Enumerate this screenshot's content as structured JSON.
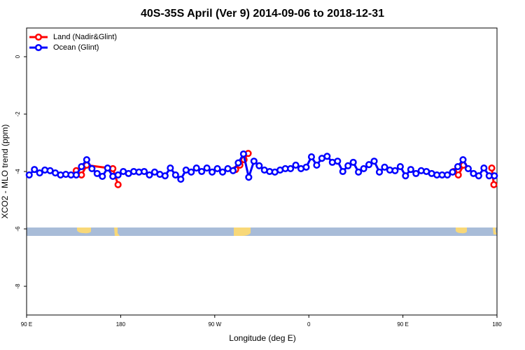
{
  "chart_data": {
    "type": "line",
    "title": "40S-35S April (Ver 9)   2014-09-06 to 2018-12-31",
    "x_label": "Longitude (deg E)",
    "y_label": "XCO2 - MLO trend (ppm)",
    "xlim": [
      90,
      540
    ],
    "ylim": [
      -9,
      1
    ],
    "xticks": [
      {
        "value": 90,
        "label": "90 E"
      },
      {
        "value": 180,
        "label": "180"
      },
      {
        "value": 270,
        "label": "90 W"
      },
      {
        "value": 360,
        "label": "0"
      },
      {
        "value": 450,
        "label": "90 E"
      },
      {
        "value": 540,
        "label": "180"
      }
    ],
    "yticks": [
      0,
      -2,
      -4,
      -6,
      -8
    ],
    "legend": "top-left",
    "series": [
      {
        "name": "Land (Nadir&Glint)",
        "color": "#ff0000",
        "x": [
          137.5,
          142.5,
          147.5,
          172.5,
          177.5,
          230,
          290,
          294,
          298,
          302,
          400,
          498.5,
          503,
          508,
          520,
          535,
          537
        ],
        "values": [
          -3.97,
          -4.12,
          -3.78,
          -3.9,
          -4.46,
          null,
          -3.93,
          -3.78,
          -3.59,
          -3.37,
          null,
          -4.0,
          -4.12,
          -3.78,
          null,
          -3.88,
          -4.46
        ]
      },
      {
        "name": "Ocean (Glint)",
        "color": "#0000ff",
        "x": [
          92.5,
          97.5,
          102.5,
          107.5,
          112.5,
          117.5,
          122.5,
          127.5,
          132.5,
          137.5,
          142.5,
          147.5,
          152.5,
          157.5,
          162.5,
          167.5,
          172.5,
          177.5,
          182.5,
          187.5,
          192.5,
          197.5,
          202.5,
          207.5,
          212.5,
          217.5,
          222.5,
          227.5,
          232.5,
          237.5,
          242.5,
          247.5,
          252.5,
          257.5,
          262.5,
          267.5,
          272.5,
          277.5,
          282.5,
          287.5,
          292.5,
          297.5,
          302.5,
          307.5,
          312.5,
          317.5,
          322.5,
          327.5,
          332.5,
          337.5,
          342.5,
          347.5,
          352.5,
          357.5,
          362.5,
          367.5,
          372.5,
          377.5,
          382.5,
          387.5,
          392.5,
          397.5,
          402.5,
          407.5,
          412.5,
          417.5,
          422.5,
          427.5,
          432.5,
          437.5,
          442.5,
          447.5,
          452.5,
          457.5,
          462.5,
          467.5,
          472.5,
          477.5,
          482.5,
          487.5,
          492.5,
          497.5,
          502.5,
          507.5,
          512.5,
          517.5,
          522.5,
          527.5,
          532.5,
          537.5
        ],
        "values": [
          -4.12,
          -3.93,
          -4.05,
          -3.95,
          -3.97,
          -4.05,
          -4.12,
          -4.1,
          -4.12,
          -4.12,
          -3.83,
          -3.59,
          -3.9,
          -4.07,
          -4.17,
          -3.88,
          -4.17,
          -4.12,
          -4.0,
          -4.07,
          -4.0,
          -4.02,
          -4.0,
          -4.12,
          -4.02,
          -4.1,
          -4.15,
          -3.88,
          -4.12,
          -4.27,
          -3.95,
          -4.02,
          -3.88,
          -4.0,
          -3.88,
          -4.02,
          -3.9,
          -4.02,
          -3.9,
          -3.97,
          -3.7,
          -3.39,
          -4.2,
          -3.64,
          -3.8,
          -3.95,
          -4.0,
          -4.02,
          -3.95,
          -3.9,
          -3.9,
          -3.78,
          -3.9,
          -3.85,
          -3.49,
          -3.78,
          -3.54,
          -3.47,
          -3.68,
          -3.64,
          -4.0,
          -3.8,
          -3.68,
          -4.02,
          -3.9,
          -3.76,
          -3.64,
          -4.02,
          -3.85,
          -3.95,
          -3.97,
          -3.83,
          -4.15,
          -3.93,
          -4.07,
          -3.97,
          -4.0,
          -4.07,
          -4.12,
          -4.12,
          -4.12,
          -4.02,
          -3.83,
          -3.59,
          -3.9,
          -4.07,
          -4.15,
          -3.88,
          -4.15,
          -4.15
        ]
      }
    ]
  }
}
